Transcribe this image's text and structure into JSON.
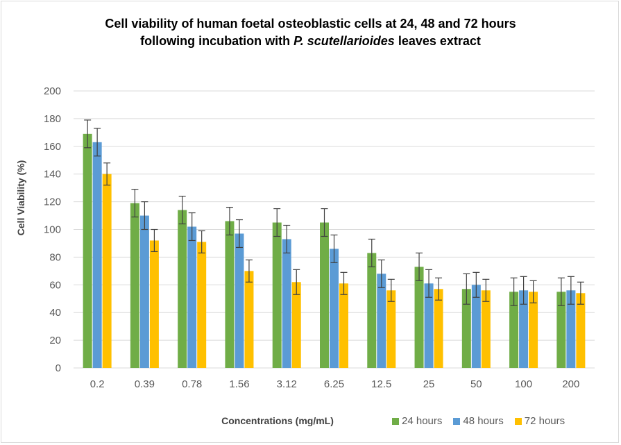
{
  "chart_data": {
    "type": "bar",
    "title_line1": "Cell viability of human foetal osteoblastic cells at 24, 48 and 72 hours",
    "title_line2_prefix": "following incubation with ",
    "title_line2_italic": "P. scutellarioides",
    "title_line2_suffix": " leaves extract",
    "xlabel": "Concentrations (mg/mL)",
    "ylabel": "Cell Viability (%)",
    "ylim": [
      0,
      200
    ],
    "yticks": [
      0,
      20,
      40,
      60,
      80,
      100,
      120,
      140,
      160,
      180,
      200
    ],
    "grid": true,
    "legend_position": "bottom-right",
    "categories": [
      "0.2",
      "0.39",
      "0.78",
      "1.56",
      "3.12",
      "6.25",
      "12.5",
      "25",
      "50",
      "100",
      "200"
    ],
    "series": [
      {
        "name": "24 hours",
        "color": "#70ad47",
        "values": [
          169,
          119,
          114,
          106,
          105,
          105,
          83,
          73,
          57,
          55,
          55
        ],
        "errors": [
          10,
          10,
          10,
          10,
          10,
          10,
          10,
          10,
          11,
          10,
          10
        ]
      },
      {
        "name": "48 hours",
        "color": "#5b9bd5",
        "values": [
          163,
          110,
          102,
          97,
          93,
          86,
          68,
          61,
          60,
          56,
          56
        ],
        "errors": [
          10,
          10,
          10,
          10,
          10,
          10,
          10,
          10,
          9,
          10,
          10
        ]
      },
      {
        "name": "72 hours",
        "color": "#ffc000",
        "values": [
          140,
          92,
          91,
          70,
          62,
          61,
          56,
          57,
          56,
          55,
          54
        ],
        "errors": [
          8,
          8,
          8,
          8,
          9,
          8,
          8,
          8,
          8,
          8,
          8
        ]
      }
    ]
  }
}
